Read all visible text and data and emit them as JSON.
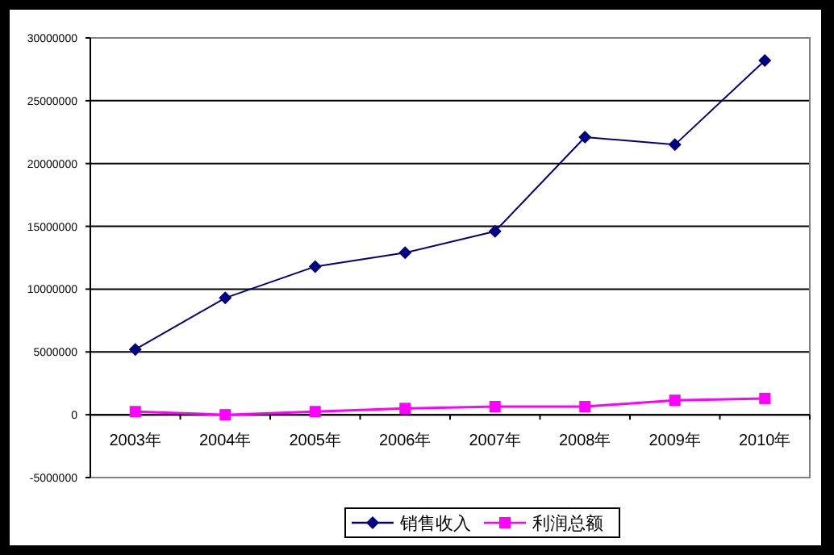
{
  "chart_data": {
    "type": "line",
    "categories": [
      "2003年",
      "2004年",
      "2005年",
      "2006年",
      "2007年",
      "2008年",
      "2009年",
      "2010年"
    ],
    "series": [
      {
        "name": "销售收入",
        "color": "#000080",
        "marker": "diamond",
        "values": [
          5200000,
          9300000,
          11800000,
          12900000,
          14600000,
          22100000,
          21500000,
          28200000
        ]
      },
      {
        "name": "利润总额",
        "color": "#ff00ff",
        "marker": "square",
        "values": [
          250000,
          0,
          250000,
          500000,
          650000,
          650000,
          1150000,
          1300000
        ]
      }
    ],
    "ylim": [
      -5000000,
      30000000
    ],
    "yticks": [
      -5000000,
      0,
      5000000,
      10000000,
      15000000,
      20000000,
      25000000,
      30000000
    ],
    "grid": "y",
    "legend": "bottom",
    "line_style": "solid"
  }
}
